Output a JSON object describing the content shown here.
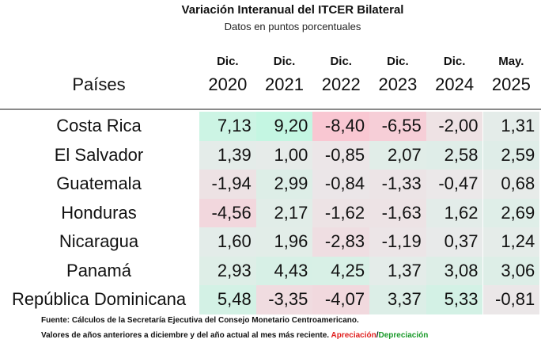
{
  "title": "Variación Interanual del ITCER Bilateral",
  "subtitle": "Datos en puntos porcentuales",
  "header": {
    "country": "Países",
    "months": [
      "Dic.",
      "Dic.",
      "Dic.",
      "Dic.",
      "Dic.",
      "May."
    ],
    "years": [
      "2020",
      "2021",
      "2022",
      "2023",
      "2024",
      "2025"
    ]
  },
  "table": {
    "rows": [
      [
        "Costa Rica",
        "7,13",
        "9,20",
        "-8,40",
        "-6,55",
        "-2,00",
        "1,31"
      ],
      [
        "El Salvador",
        "1,39",
        "1,00",
        "-0,85",
        "2,07",
        "2,58",
        "2,59"
      ],
      [
        "Guatemala",
        "-1,94",
        "2,99",
        "-0,84",
        "-1,33",
        "-0,47",
        "0,68"
      ],
      [
        "Honduras",
        "-4,56",
        "2,17",
        "-1,62",
        "-1,63",
        "1,62",
        "2,69"
      ],
      [
        "Nicaragua",
        "1,60",
        "1,96",
        "-2,83",
        "-1,19",
        "0,37",
        "1,24"
      ],
      [
        "Panamá",
        "2,93",
        "4,43",
        "4,25",
        "1,37",
        "3,08",
        "3,06"
      ],
      [
        "República Dominicana",
        "5,48",
        "-3,35",
        "-4,07",
        "3,37",
        "5,33",
        "-0,81"
      ]
    ]
  },
  "footer": {
    "source": "Fuente: Cálculos de la Secretaría Ejecutiva del Consejo Monetario Centroamericano.",
    "note": "Valores de años anteriores a diciembre y del año actual al mes más reciente.",
    "appreciation": "Apreciación",
    "separator": "/",
    "depreciation": "Depreciación"
  }
}
